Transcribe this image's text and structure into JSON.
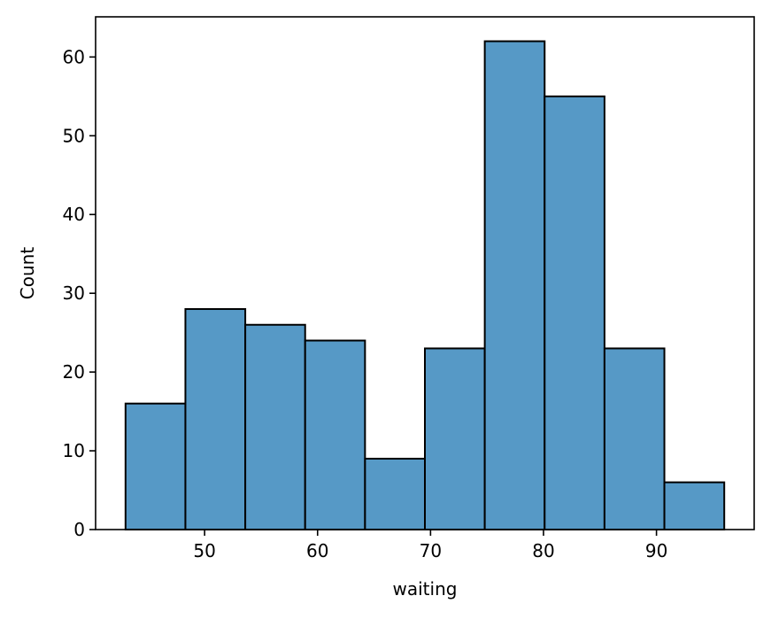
{
  "chart_data": {
    "type": "bar",
    "title": "",
    "xlabel": "waiting",
    "ylabel": "Count",
    "bin_edges": [
      43.0,
      48.3,
      53.6,
      58.9,
      64.2,
      69.5,
      74.8,
      80.1,
      85.4,
      90.7,
      96.0
    ],
    "values": [
      16,
      28,
      26,
      24,
      9,
      23,
      62,
      55,
      23,
      6
    ],
    "xlim": [
      40.35,
      98.65
    ],
    "ylim": [
      0,
      65.1
    ],
    "xticks": [
      50,
      60,
      70,
      80,
      90
    ],
    "yticks": [
      0,
      10,
      20,
      30,
      40,
      50,
      60
    ],
    "bar_color": "#5699c6",
    "edge_color": "#000000",
    "grid": false
  }
}
